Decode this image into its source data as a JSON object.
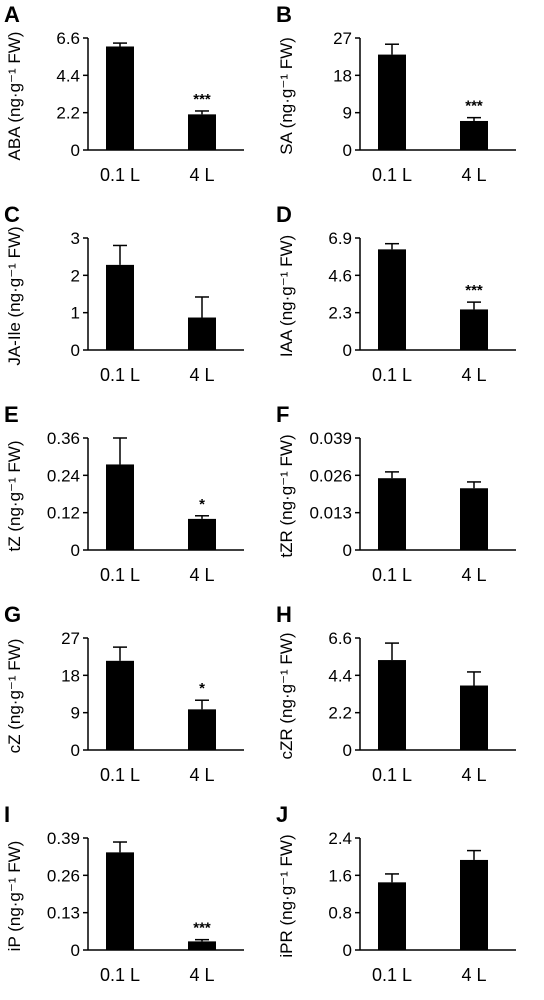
{
  "chart_data": [
    {
      "panel": "A",
      "type": "bar",
      "ylabel": "ABA (ng·g⁻¹ FW)",
      "categories": [
        "0.1 L",
        "4 L"
      ],
      "values": [
        6.1,
        2.1
      ],
      "errors": [
        0.2,
        0.2
      ],
      "yticks": [
        "0",
        "2.2",
        "4.4",
        "6.6"
      ],
      "ylim": [
        0,
        6.6
      ],
      "significance": [
        "",
        "***"
      ]
    },
    {
      "panel": "B",
      "type": "bar",
      "ylabel": "SA (ng·g⁻¹ FW)",
      "categories": [
        "0.1 L",
        "4 L"
      ],
      "values": [
        23,
        7
      ],
      "errors": [
        2.5,
        0.8
      ],
      "yticks": [
        "0",
        "9",
        "18",
        "27"
      ],
      "ylim": [
        0,
        27
      ],
      "significance": [
        "",
        "***"
      ]
    },
    {
      "panel": "C",
      "type": "bar",
      "ylabel": "JA-Ile (ng·g⁻¹ FW)",
      "categories": [
        "0.1 L",
        "4 L"
      ],
      "values": [
        2.28,
        0.87
      ],
      "errors": [
        0.52,
        0.55
      ],
      "yticks": [
        "0",
        "1",
        "2",
        "3"
      ],
      "ylim": [
        0,
        3
      ],
      "significance": [
        "",
        ""
      ]
    },
    {
      "panel": "D",
      "type": "bar",
      "ylabel": "IAA (ng·g⁻¹ FW)",
      "categories": [
        "0.1 L",
        "4 L"
      ],
      "values": [
        6.2,
        2.5
      ],
      "errors": [
        0.35,
        0.45
      ],
      "yticks": [
        "0",
        "2.3",
        "4.6",
        "6.9"
      ],
      "ylim": [
        0,
        6.9
      ],
      "significance": [
        "",
        "***"
      ]
    },
    {
      "panel": "E",
      "type": "bar",
      "ylabel": "tZ (ng·g⁻¹ FW)",
      "categories": [
        "0.1 L",
        "4 L"
      ],
      "values": [
        0.275,
        0.1
      ],
      "errors": [
        0.085,
        0.01
      ],
      "yticks": [
        "0",
        "0.12",
        "0.24",
        "0.36"
      ],
      "ylim": [
        0,
        0.36
      ],
      "significance": [
        "",
        "*"
      ]
    },
    {
      "panel": "F",
      "type": "bar",
      "ylabel": "tZR (ng·g⁻¹ FW)",
      "categories": [
        "0.1 L",
        "4 L"
      ],
      "values": [
        0.025,
        0.0215
      ],
      "errors": [
        0.0022,
        0.0022
      ],
      "yticks": [
        "0",
        "0.013",
        "0.026",
        "0.039"
      ],
      "ylim": [
        0,
        0.039
      ],
      "significance": [
        "",
        ""
      ]
    },
    {
      "panel": "G",
      "type": "bar",
      "ylabel": "cZ (ng·g⁻¹ FW)",
      "categories": [
        "0.1 L",
        "4 L"
      ],
      "values": [
        21.5,
        9.8
      ],
      "errors": [
        3.3,
        2.2
      ],
      "yticks": [
        "0",
        "9",
        "18",
        "27"
      ],
      "ylim": [
        0,
        27
      ],
      "significance": [
        "",
        "*"
      ]
    },
    {
      "panel": "H",
      "type": "bar",
      "ylabel": "cZR (ng·g⁻¹ FW)",
      "categories": [
        "0.1 L",
        "4 L"
      ],
      "values": [
        5.3,
        3.8
      ],
      "errors": [
        1.0,
        0.8
      ],
      "yticks": [
        "0",
        "2.2",
        "4.4",
        "6.6"
      ],
      "ylim": [
        0,
        6.6
      ],
      "significance": [
        "",
        ""
      ]
    },
    {
      "panel": "I",
      "type": "bar",
      "ylabel": "iP (ng·g⁻¹ FW)",
      "categories": [
        "0.1 L",
        "4 L"
      ],
      "values": [
        0.34,
        0.03
      ],
      "errors": [
        0.036,
        0.006
      ],
      "yticks": [
        "0",
        "0.13",
        "0.26",
        "0.39"
      ],
      "ylim": [
        0,
        0.39
      ],
      "significance": [
        "",
        "***"
      ]
    },
    {
      "panel": "J",
      "type": "bar",
      "ylabel": "iPR (ng·g⁻¹ FW)",
      "categories": [
        "0.1 L",
        "4 L"
      ],
      "values": [
        1.45,
        1.93
      ],
      "errors": [
        0.18,
        0.2
      ],
      "yticks": [
        "0",
        "0.8",
        "1.6",
        "2.4"
      ],
      "ylim": [
        0,
        2.4
      ],
      "significance": [
        "",
        ""
      ]
    }
  ],
  "colors": {
    "bar": "#000000",
    "axis": "#000000"
  }
}
